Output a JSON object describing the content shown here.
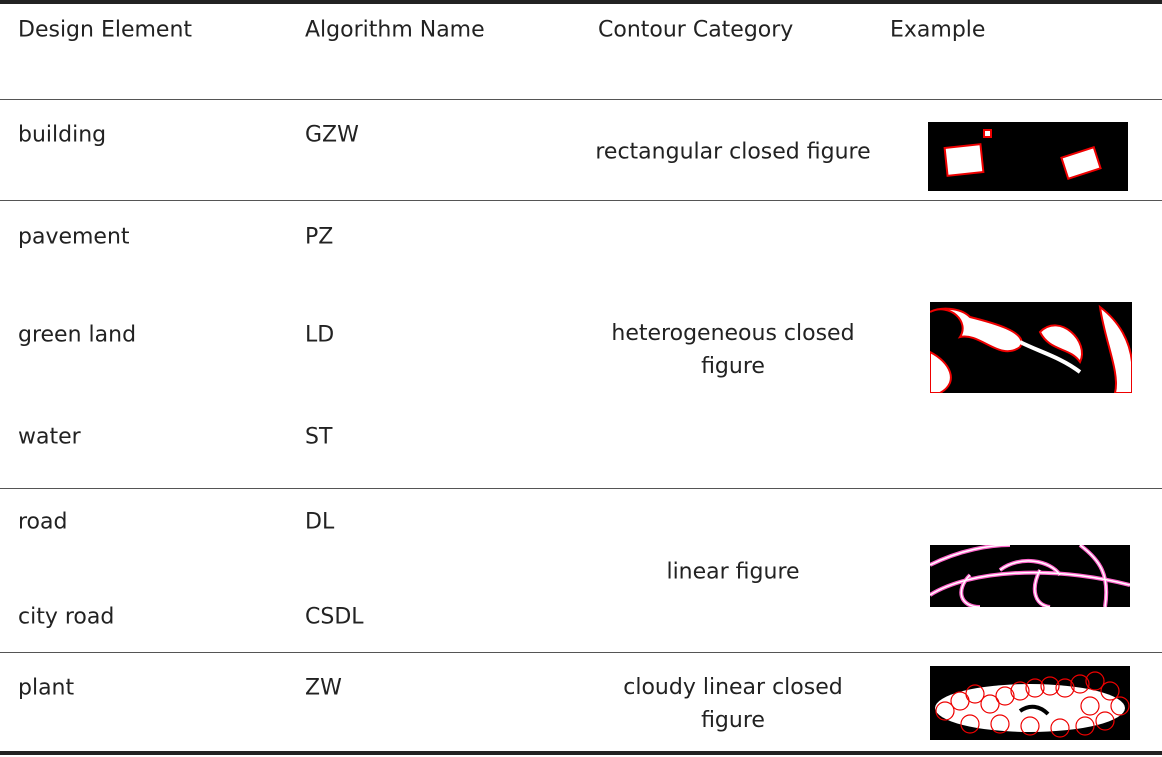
{
  "table": {
    "header": [
      "Design Element",
      "Algorithm Name",
      "Contour Category",
      "Example"
    ],
    "groups": [
      {
        "rows": [
          [
            "building",
            "GZW"
          ]
        ],
        "category": "rectangular closed figure"
      },
      {
        "rows": [
          [
            "pavement",
            "PZ"
          ],
          [
            "green land",
            "LD"
          ],
          [
            "water",
            "ST"
          ]
        ],
        "category": "heterogeneous closed figure"
      },
      {
        "rows": [
          [
            "road",
            "DL"
          ],
          [
            "city road",
            "CSDL"
          ]
        ],
        "category": "linear figure"
      },
      {
        "rows": [
          [
            "plant",
            "ZW"
          ]
        ],
        "category": "cloudy linear closed figure"
      }
    ]
  }
}
